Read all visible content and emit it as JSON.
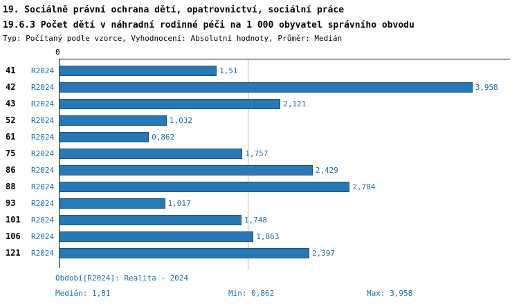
{
  "header": {
    "line1": "19. Sociálně právní ochrana dětí, opatrovnictví, sociální práce",
    "line2": "19.6.3 Počet dětí v náhradní rodinné péči na 1 000 obyvatel správního obvodu",
    "line3": "Typ: Počítaný podle vzorce, Vyhodnocení: Absolutní hodnoty, Průměr: Medián"
  },
  "chart_data": {
    "type": "bar",
    "orientation": "horizontal",
    "title": "19.6.3 Počet dětí v náhradní rodinné péči na 1 000 obyvatel správního obvodu",
    "categories": [
      "41",
      "42",
      "43",
      "52",
      "61",
      "75",
      "86",
      "88",
      "93",
      "101",
      "106",
      "121"
    ],
    "series_label": "R2024",
    "values": [
      1.51,
      3.958,
      2.121,
      1.032,
      0.862,
      1.757,
      2.429,
      2.784,
      1.017,
      1.748,
      1.863,
      2.397
    ],
    "value_labels": [
      "1,51",
      "3,958",
      "2,121",
      "1,032",
      "0,862",
      "1,757",
      "2,429",
      "2,784",
      "1,017",
      "1,748",
      "1,863",
      "2,397"
    ],
    "x_tick_zero": "0",
    "xlim": [
      0,
      4.32
    ],
    "median": 1.81,
    "grid": "median-line-only",
    "legend": "none",
    "bar_color": "#2878b4",
    "bar_border_color": "#17537f"
  },
  "footer": {
    "period": "Období[R2024]: Realita - 2024",
    "median": "Medián: 1,81",
    "min": "Min: 0,862",
    "max": "Max: 3,958"
  }
}
